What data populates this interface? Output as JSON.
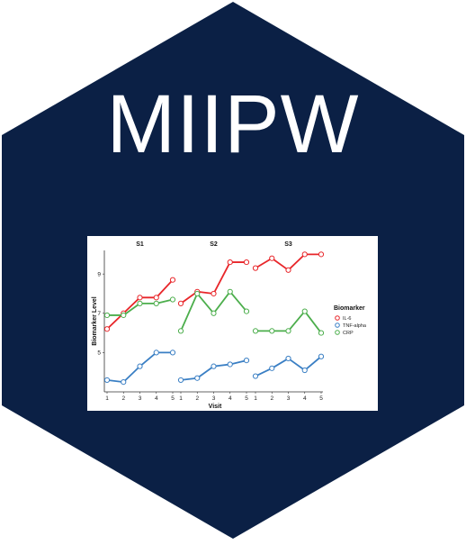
{
  "logo": {
    "title": "MIIPW",
    "background_color": "#0b2045",
    "text_color": "#ffffff"
  },
  "chart_data": {
    "type": "line",
    "xlabel": "Visit",
    "ylabel": "Biomarker Level",
    "x": [
      1,
      2,
      3,
      4,
      5
    ],
    "x_ticks": [
      "1",
      "2",
      "3",
      "4",
      "5"
    ],
    "y_ticks": [
      "5",
      "7",
      "9"
    ],
    "ylim": [
      3.0,
      10.2
    ],
    "grid": false,
    "legend_title": "Biomarker",
    "legend_position": "right",
    "series_colors": {
      "IL-6": "#e8262a",
      "TNF-alpha": "#3a7fc4",
      "CRP": "#4cae4c"
    },
    "facets": [
      {
        "name": "S1",
        "series": [
          {
            "name": "IL-6",
            "values": [
              6.2,
              7.0,
              7.8,
              7.8,
              8.7
            ]
          },
          {
            "name": "TNF-alpha",
            "values": [
              3.6,
              3.5,
              4.3,
              5.0,
              5.0
            ]
          },
          {
            "name": "CRP",
            "values": [
              6.9,
              6.9,
              7.5,
              7.5,
              7.7
            ]
          }
        ]
      },
      {
        "name": "S2",
        "series": [
          {
            "name": "IL-6",
            "values": [
              7.5,
              8.1,
              8.0,
              9.6,
              9.6
            ]
          },
          {
            "name": "TNF-alpha",
            "values": [
              3.6,
              3.7,
              4.3,
              4.4,
              4.6
            ]
          },
          {
            "name": "CRP",
            "values": [
              6.1,
              8.0,
              7.0,
              8.1,
              7.1
            ]
          }
        ]
      },
      {
        "name": "S3",
        "series": [
          {
            "name": "IL-6",
            "values": [
              9.3,
              9.8,
              9.2,
              10.0,
              10.0
            ]
          },
          {
            "name": "TNF-alpha",
            "values": [
              3.8,
              4.2,
              4.7,
              4.1,
              4.8
            ]
          },
          {
            "name": "CRP",
            "values": [
              6.1,
              6.1,
              6.1,
              7.1,
              6.0
            ]
          }
        ]
      }
    ]
  }
}
